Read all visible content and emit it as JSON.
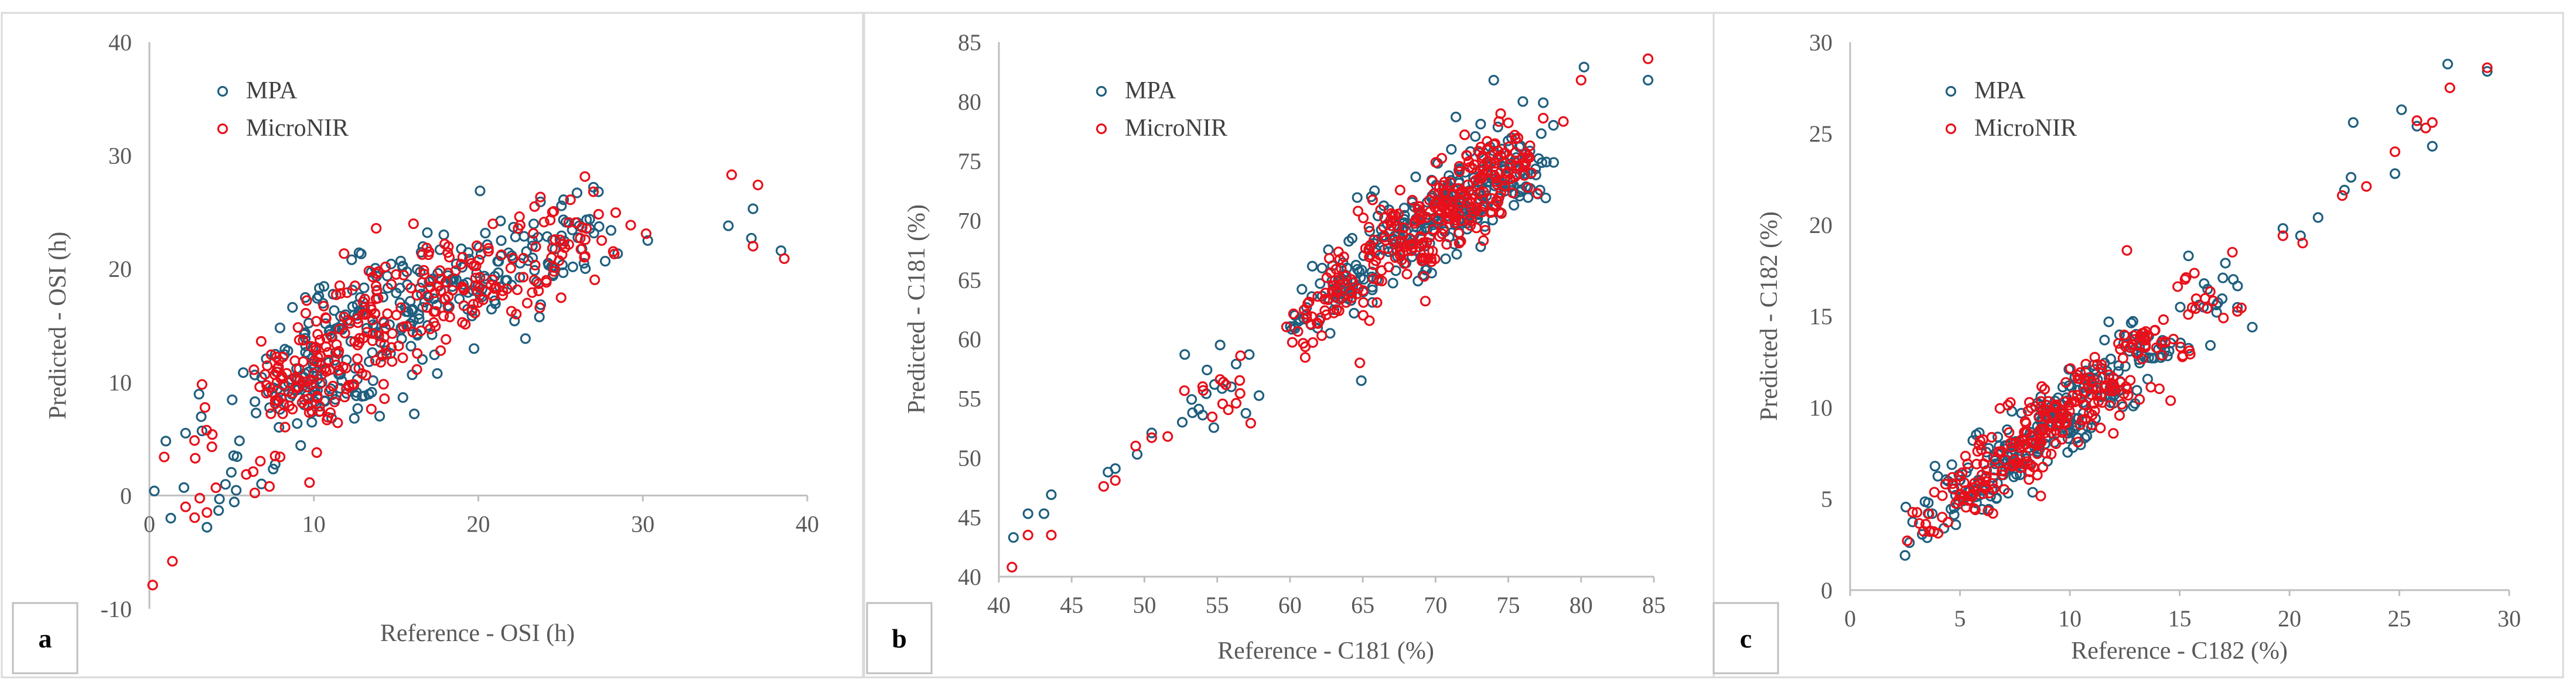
{
  "chart_data": [
    {
      "type": "scatter",
      "panel_label": "a",
      "xlabel": "Reference - OSI (h)",
      "ylabel": "Predicted - OSI (h)",
      "xlim": [
        0,
        40
      ],
      "ylim": [
        -10,
        40
      ],
      "xticks": [
        "0",
        "10",
        "20",
        "30",
        "40"
      ],
      "yticks": [
        "-10",
        "0",
        "10",
        "20",
        "30",
        "40"
      ],
      "legend": [
        "MPA",
        "MicroNIR"
      ],
      "series": [
        {
          "name": "MPA",
          "color": "#1f5f7f",
          "clusters": [
            {
              "x": 9,
              "y": 10,
              "sx": 1.5,
              "sy": 2,
              "n": 60
            },
            {
              "x": 13,
              "y": 14,
              "sx": 2,
              "sy": 2.5,
              "n": 70
            },
            {
              "x": 17,
              "y": 18,
              "sx": 2,
              "sy": 2,
              "n": 60
            },
            {
              "x": 21,
              "y": 19.5,
              "sx": 2,
              "sy": 2,
              "n": 50
            },
            {
              "x": 25.5,
              "y": 23,
              "sx": 1.5,
              "sy": 2,
              "n": 35
            },
            {
              "x": 5,
              "y": 4,
              "sx": 2.5,
              "sy": 3,
              "n": 18
            },
            {
              "x": 11,
              "y": 12,
              "sx": 1.5,
              "sy": 2.5,
              "n": 30
            }
          ],
          "extra": [
            [
              0.3,
              0.4
            ],
            [
              1,
              4.8
            ],
            [
              2.2,
              5.5
            ],
            [
              3.2,
              5.7
            ],
            [
              3.5,
              -2.8
            ],
            [
              1.3,
              -2
            ],
            [
              2.1,
              0.7
            ],
            [
              12.3,
              20.8
            ],
            [
              14,
              7
            ],
            [
              27,
              27.2
            ],
            [
              27.3,
              26.8
            ],
            [
              30.3,
              22.5
            ],
            [
              35.2,
              23.8
            ],
            [
              36.6,
              22.7
            ],
            [
              36.7,
              25.3
            ],
            [
              38.4,
              21.6
            ],
            [
              8.7,
              16.6
            ],
            [
              10.2,
              17.4
            ],
            [
              22.2,
              15.4
            ],
            [
              26,
              26.7
            ]
          ]
        },
        {
          "name": "MicroNIR",
          "color": "#e8101a",
          "clusters": [
            {
              "x": 9,
              "y": 10,
              "sx": 1.5,
              "sy": 2,
              "n": 60
            },
            {
              "x": 13,
              "y": 14,
              "sx": 2,
              "sy": 2.5,
              "n": 70
            },
            {
              "x": 17,
              "y": 18,
              "sx": 2,
              "sy": 2,
              "n": 60
            },
            {
              "x": 21,
              "y": 19.5,
              "sx": 2,
              "sy": 2,
              "n": 50
            },
            {
              "x": 25.5,
              "y": 23,
              "sx": 1.5,
              "sy": 2,
              "n": 35
            },
            {
              "x": 5,
              "y": 4,
              "sx": 2.5,
              "sy": 3,
              "n": 18
            },
            {
              "x": 11,
              "y": 12,
              "sx": 1.5,
              "sy": 2.5,
              "n": 30
            }
          ],
          "extra": [
            [
              0.2,
              -7.9
            ],
            [
              1.4,
              -5.8
            ],
            [
              0.9,
              3.4
            ],
            [
              2.2,
              -1
            ],
            [
              3.5,
              -1.5
            ],
            [
              3.2,
              9.8
            ],
            [
              3.8,
              4.3
            ],
            [
              7.3,
              0.8
            ],
            [
              35.4,
              28.3
            ],
            [
              37,
              27.4
            ],
            [
              36.7,
              22
            ],
            [
              38.6,
              20.9
            ],
            [
              27,
              26.8
            ],
            [
              30.2,
              23.1
            ],
            [
              27.5,
              22.5
            ],
            [
              6.8,
              13.6
            ],
            [
              12.5,
              18.5
            ],
            [
              15,
              19.5
            ],
            [
              22.5,
              24.6
            ],
            [
              24.5,
              25
            ]
          ]
        }
      ]
    },
    {
      "type": "scatter",
      "panel_label": "b",
      "xlabel": "Reference - C181 (%)",
      "ylabel": "Predicted - C181 (%)",
      "xlim": [
        40,
        85
      ],
      "ylim": [
        40,
        85
      ],
      "xticks": [
        "40",
        "45",
        "50",
        "55",
        "60",
        "65",
        "70",
        "75",
        "80",
        "85"
      ],
      "yticks": [
        "40",
        "45",
        "50",
        "55",
        "60",
        "65",
        "70",
        "75",
        "80",
        "85"
      ],
      "legend": [
        "MPA",
        "MicroNIR"
      ],
      "series": [
        {
          "name": "MPA",
          "color": "#1f5f7f",
          "clusters": [
            {
              "x": 64,
              "y": 64.5,
              "sx": 1.3,
              "sy": 1.3,
              "n": 50
            },
            {
              "x": 68,
              "y": 68.5,
              "sx": 1.5,
              "sy": 1.6,
              "n": 80
            },
            {
              "x": 71.5,
              "y": 71.5,
              "sx": 1.5,
              "sy": 1.6,
              "n": 90
            },
            {
              "x": 75,
              "y": 74.5,
              "sx": 1.3,
              "sy": 1.5,
              "n": 70
            },
            {
              "x": 61,
              "y": 61.2,
              "sx": 1,
              "sy": 1,
              "n": 15
            },
            {
              "x": 55,
              "y": 55.5,
              "sx": 1.3,
              "sy": 1.5,
              "n": 10
            }
          ],
          "extra": [
            [
              41,
              43.3
            ],
            [
              42,
              45.3
            ],
            [
              43.1,
              45.3
            ],
            [
              43.6,
              46.9
            ],
            [
              47.5,
              48.8
            ],
            [
              48,
              49.1
            ],
            [
              49.5,
              50.3
            ],
            [
              50.5,
              52.1
            ],
            [
              52.6,
              53
            ],
            [
              53.3,
              53.8
            ],
            [
              54,
              53.6
            ],
            [
              54.3,
              57.4
            ],
            [
              55.2,
              59.5
            ],
            [
              57.2,
              58.7
            ],
            [
              56.3,
              57.9
            ],
            [
              64.9,
              56.5
            ],
            [
              74,
              81.8
            ],
            [
              77.4,
              79.9
            ],
            [
              80.2,
              82.9
            ],
            [
              84.6,
              81.8
            ],
            [
              71.4,
              78.7
            ],
            [
              73.1,
              78.1
            ],
            [
              78.1,
              78
            ],
            [
              76,
              80
            ]
          ]
        },
        {
          "name": "MicroNIR",
          "color": "#e8101a",
          "clusters": [
            {
              "x": 64,
              "y": 64.5,
              "sx": 1.3,
              "sy": 1.3,
              "n": 50
            },
            {
              "x": 68,
              "y": 68.5,
              "sx": 1.5,
              "sy": 1.6,
              "n": 80
            },
            {
              "x": 71.5,
              "y": 71.5,
              "sx": 1.5,
              "sy": 1.6,
              "n": 90
            },
            {
              "x": 75,
              "y": 74.5,
              "sx": 1.3,
              "sy": 1.5,
              "n": 70
            },
            {
              "x": 61,
              "y": 61.2,
              "sx": 1,
              "sy": 1,
              "n": 15
            },
            {
              "x": 55,
              "y": 55.5,
              "sx": 1.3,
              "sy": 1.5,
              "n": 10
            }
          ],
          "extra": [
            [
              40.9,
              40.8
            ],
            [
              42,
              43.5
            ],
            [
              43.6,
              43.5
            ],
            [
              47.2,
              47.6
            ],
            [
              48,
              48.1
            ],
            [
              49.4,
              51
            ],
            [
              50.5,
              51.7
            ],
            [
              51.6,
              51.8
            ],
            [
              54,
              56
            ],
            [
              55.2,
              56.6
            ],
            [
              56.3,
              54.6
            ],
            [
              56.6,
              58.6
            ],
            [
              62.7,
              66.8
            ],
            [
              64.8,
              58
            ],
            [
              69.3,
              63.2
            ],
            [
              80,
              81.8
            ],
            [
              84.6,
              83.6
            ],
            [
              77.4,
              78.6
            ],
            [
              72,
              77.2
            ],
            [
              75,
              78.2
            ]
          ]
        }
      ]
    },
    {
      "type": "scatter",
      "panel_label": "c",
      "xlabel": "Reference - C182 (%)",
      "ylabel": "Predicted - C182 (%)",
      "xlim": [
        0,
        30
      ],
      "ylim": [
        0,
        30
      ],
      "xticks": [
        "0",
        "5",
        "10",
        "15",
        "20",
        "25",
        "30"
      ],
      "yticks": [
        "0",
        "5",
        "10",
        "15",
        "20",
        "25",
        "30"
      ],
      "legend": [
        "MPA",
        "MicroNIR"
      ],
      "series": [
        {
          "name": "MPA",
          "color": "#1f5f7f",
          "clusters": [
            {
              "x": 5.5,
              "y": 5.5,
              "sx": 0.8,
              "sy": 0.6,
              "n": 40
            },
            {
              "x": 7.5,
              "y": 7.5,
              "sx": 0.9,
              "sy": 0.7,
              "n": 60
            },
            {
              "x": 9.5,
              "y": 9.5,
              "sx": 0.9,
              "sy": 0.7,
              "n": 70
            },
            {
              "x": 11.5,
              "y": 11.3,
              "sx": 0.9,
              "sy": 0.7,
              "n": 50
            },
            {
              "x": 13.5,
              "y": 13.3,
              "sx": 0.9,
              "sy": 0.7,
              "n": 35
            },
            {
              "x": 16.3,
              "y": 16.2,
              "sx": 0.8,
              "sy": 0.8,
              "n": 15
            },
            {
              "x": 3.8,
              "y": 3.8,
              "sx": 0.6,
              "sy": 0.6,
              "n": 12
            }
          ],
          "extra": [
            [
              2.5,
              1.9
            ],
            [
              2.7,
              2.6
            ],
            [
              19.7,
              19.8
            ],
            [
              20.5,
              19.4
            ],
            [
              21.3,
              20.4
            ],
            [
              22.5,
              21.9
            ],
            [
              22.8,
              22.6
            ],
            [
              22.9,
              25.6
            ],
            [
              24.8,
              22.8
            ],
            [
              25.1,
              26.3
            ],
            [
              25.8,
              25.4
            ],
            [
              26.5,
              24.3
            ],
            [
              27.2,
              28.8
            ],
            [
              29,
              28.4
            ],
            [
              15.4,
              18.3
            ],
            [
              16.4,
              13.4
            ]
          ]
        },
        {
          "name": "MicroNIR",
          "color": "#e8101a",
          "clusters": [
            {
              "x": 5.5,
              "y": 5.5,
              "sx": 0.8,
              "sy": 0.6,
              "n": 40
            },
            {
              "x": 7.5,
              "y": 7.5,
              "sx": 0.9,
              "sy": 0.7,
              "n": 60
            },
            {
              "x": 9.5,
              "y": 9.5,
              "sx": 0.9,
              "sy": 0.7,
              "n": 70
            },
            {
              "x": 11.5,
              "y": 11.3,
              "sx": 0.9,
              "sy": 0.7,
              "n": 50
            },
            {
              "x": 13.5,
              "y": 13.3,
              "sx": 0.9,
              "sy": 0.7,
              "n": 35
            },
            {
              "x": 16.3,
              "y": 16.2,
              "sx": 0.8,
              "sy": 0.8,
              "n": 15
            },
            {
              "x": 3.8,
              "y": 3.8,
              "sx": 0.6,
              "sy": 0.6,
              "n": 12
            }
          ],
          "extra": [
            [
              2.6,
              2.7
            ],
            [
              12.6,
              18.6
            ],
            [
              6.5,
              4.2
            ],
            [
              19.7,
              19.4
            ],
            [
              20.6,
              19
            ],
            [
              22.4,
              21.6
            ],
            [
              23.5,
              22.1
            ],
            [
              24.8,
              24
            ],
            [
              25.8,
              25.7
            ],
            [
              26.2,
              25.3
            ],
            [
              26.5,
              25.6
            ],
            [
              27.3,
              27.5
            ],
            [
              29,
              28.6
            ],
            [
              17.4,
              18.5
            ]
          ]
        }
      ]
    }
  ]
}
